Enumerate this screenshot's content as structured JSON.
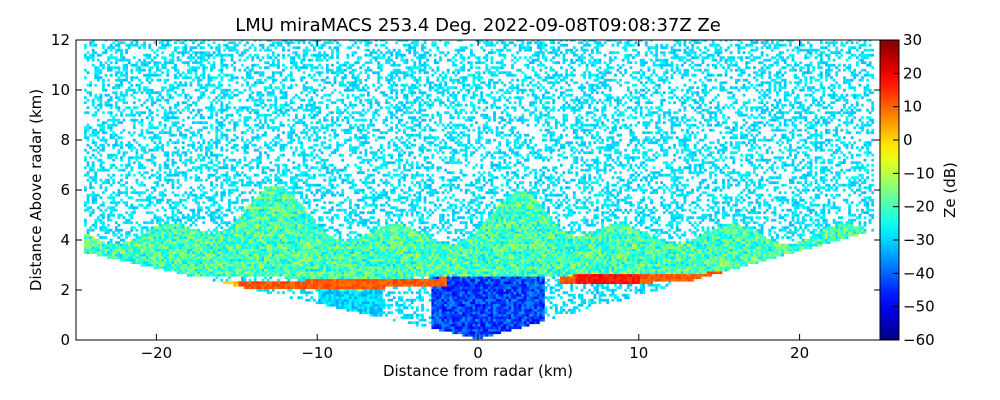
{
  "chart_data": {
    "type": "heatmap",
    "title": "LMU miraMACS 253.4 Deg. 2022-09-08T09:08:37Z  Ze",
    "xlabel": "Distance from radar (km)",
    "ylabel": "Distance Above radar  (km)",
    "xlim": [
      -25,
      25
    ],
    "ylim": [
      0,
      12
    ],
    "xticks": [
      -20,
      -10,
      0,
      10,
      20
    ],
    "yticks": [
      0,
      2,
      4,
      6,
      8,
      10,
      12
    ],
    "grid": false,
    "colorbar": {
      "label": "Ze (dB)",
      "range": [
        -60,
        30
      ],
      "ticks": [
        -60,
        -50,
        -40,
        -30,
        -20,
        -10,
        0,
        10,
        20,
        30
      ],
      "colormap": "jet"
    },
    "features": [
      {
        "name": "scan_edge_left",
        "angle_from_zenith_deg": -82
      },
      {
        "name": "scan_edge_right",
        "angle_from_zenith_deg": 80
      },
      {
        "name": "melting_layer_bright_band",
        "height_km": 2.3,
        "ze_db": 10
      },
      {
        "name": "stratiform_cloud",
        "top_km": 6.2,
        "base_km": 2.5,
        "ze_db_range": [
          -30,
          -10
        ]
      },
      {
        "name": "near_radar_weak_echo",
        "x_range_km": [
          -3,
          3
        ],
        "height_range_km": [
          0,
          2.5
        ],
        "ze_db_range": [
          -50,
          -35
        ]
      }
    ]
  }
}
